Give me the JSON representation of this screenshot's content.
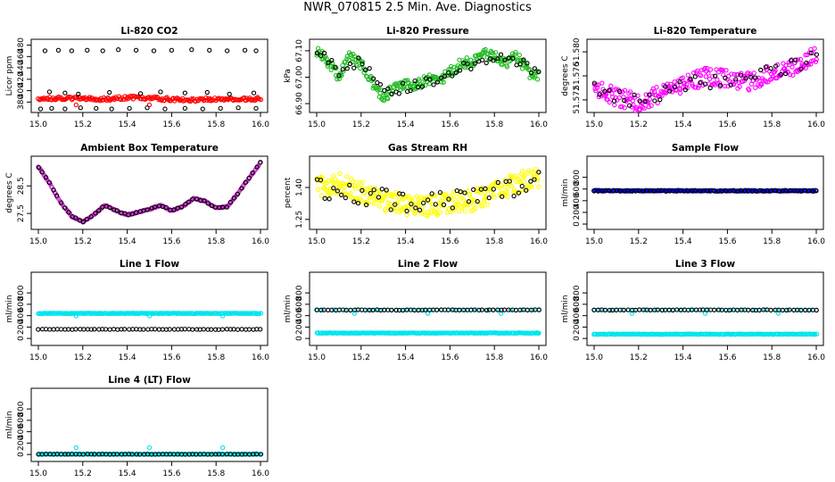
{
  "page": {
    "title": "NWR_070815  2.5 Min. Ave. Diagnostics"
  },
  "colors": {
    "co2": "#ff0000",
    "pressure": "#22bb22",
    "temperature": "#ff00ff",
    "box_temp": "#cc33cc",
    "rh": "#ffff00",
    "sample_flow": "#0000cc",
    "line_flow": "#00e5ee",
    "black": "#000000"
  },
  "chart_data": [
    {
      "type": "scatter",
      "title": "Li-820 CO2",
      "ylabel": "Licor ppm",
      "xlim": [
        15.0,
        16.0
      ],
      "ylim": [
        368,
        484
      ],
      "xticks": [
        "15.0",
        "15.2",
        "15.4",
        "15.6",
        "15.8",
        "16.0"
      ],
      "yticks": [
        {
          "v": 380,
          "label": "380"
        },
        {
          "v": 400,
          "label": "400"
        },
        {
          "v": 420,
          "label": "420"
        },
        {
          "v": 440,
          "label": "440"
        },
        {
          "v": 460,
          "label": "460"
        },
        {
          "v": 480,
          "label": "480"
        }
      ],
      "series": [
        {
          "color": "#ff0000",
          "kind": "band",
          "x": [
            15.0,
            15.1,
            15.2,
            15.3,
            15.4,
            15.5,
            15.6,
            15.7,
            15.8,
            15.9,
            16.0
          ],
          "y": [
            386,
            387,
            386,
            385,
            388,
            387,
            385,
            384,
            385,
            385,
            386
          ],
          "spread": 3,
          "n": 200,
          "markers": "dense"
        },
        {
          "color": "#ff0000",
          "x": [
            15.17,
            15.5
          ],
          "y": [
            375,
            375
          ]
        },
        {
          "color": "#000000",
          "x": [
            15.03,
            15.09,
            15.15,
            15.22,
            15.29,
            15.36,
            15.44,
            15.52,
            15.6,
            15.69,
            15.77,
            15.85,
            15.93,
            15.98
          ],
          "y": [
            470,
            471,
            470,
            471,
            470,
            472,
            471,
            470,
            471,
            472,
            471,
            470,
            471,
            470
          ]
        },
        {
          "color": "#000000",
          "x": [
            15.01,
            15.06,
            15.12,
            15.19,
            15.26,
            15.33,
            15.41,
            15.49,
            15.57,
            15.66,
            15.74,
            15.82,
            15.9,
            15.98
          ],
          "y": [
            368,
            369,
            368,
            370,
            369,
            368,
            369,
            370,
            368,
            369,
            368,
            369,
            370,
            369
          ]
        },
        {
          "color": "#000000",
          "x": [
            15.05,
            15.12,
            15.18,
            15.32,
            15.46,
            15.55,
            15.66,
            15.76,
            15.86,
            15.97
          ],
          "y": [
            398,
            396,
            394,
            397,
            395,
            398,
            396,
            397,
            394,
            396
          ]
        }
      ]
    },
    {
      "type": "scatter",
      "title": "Li-820 Pressure",
      "ylabel": "kPa",
      "xlim": [
        15.0,
        16.0
      ],
      "ylim": [
        66.88,
        67.13
      ],
      "xticks": [
        "15.0",
        "15.2",
        "15.4",
        "15.6",
        "15.8",
        "16.0"
      ],
      "yticks": [
        {
          "v": 66.9,
          "label": "66.90"
        },
        {
          "v": 67.0,
          "label": "67.00"
        },
        {
          "v": 67.1,
          "label": "67.10"
        }
      ],
      "series": [
        {
          "color": "#22bb22",
          "kind": "band",
          "x": [
            15.0,
            15.05,
            15.1,
            15.15,
            15.2,
            15.25,
            15.3,
            15.35,
            15.4,
            15.45,
            15.5,
            15.55,
            15.6,
            15.65,
            15.7,
            15.75,
            15.8,
            15.85,
            15.9,
            15.95,
            16.0
          ],
          "y": [
            67.1,
            67.06,
            67.0,
            67.08,
            67.05,
            66.98,
            66.92,
            66.96,
            66.98,
            66.97,
            66.99,
            66.98,
            67.02,
            67.05,
            67.06,
            67.09,
            67.08,
            67.05,
            67.08,
            67.02,
            67.0
          ],
          "spread": 0.02,
          "n": 260
        },
        {
          "color": "#000000",
          "kind": "band",
          "x": [
            15.0,
            15.1,
            15.2,
            15.3,
            15.4,
            15.5,
            15.6,
            15.7,
            15.8,
            15.9,
            16.0
          ],
          "y": [
            67.1,
            67.02,
            67.07,
            66.94,
            66.96,
            66.98,
            67.01,
            67.05,
            67.08,
            67.06,
            67.02
          ],
          "spread": 0.02,
          "n": 60
        }
      ]
    },
    {
      "type": "scatter",
      "title": "Li-820 Temperature",
      "ylabel": "degrees C",
      "xlim": [
        15.0,
        16.0
      ],
      "ylim": [
        51.5705,
        51.5815
      ],
      "xticks": [
        "15.0",
        "15.2",
        "15.4",
        "15.6",
        "15.8",
        "16.0"
      ],
      "yticks": [
        {
          "v": 51.572,
          "label": "51.572"
        },
        {
          "v": 51.576,
          "label": "51.576"
        },
        {
          "v": 51.58,
          "label": "51.580"
        }
      ],
      "series": [
        {
          "color": "#ff00ff",
          "kind": "band",
          "x": [
            15.0,
            15.1,
            15.2,
            15.3,
            15.4,
            15.5,
            15.6,
            15.7,
            15.8,
            15.9,
            16.0
          ],
          "y": [
            51.574,
            51.5725,
            51.5715,
            51.573,
            51.5745,
            51.576,
            51.5755,
            51.575,
            51.5765,
            51.5775,
            51.5795
          ],
          "spread": 0.0015,
          "n": 260
        },
        {
          "color": "#000000",
          "kind": "band",
          "x": [
            15.0,
            15.2,
            15.4,
            15.6,
            15.8,
            16.0
          ],
          "y": [
            51.574,
            51.5715,
            51.5745,
            51.5755,
            51.5765,
            51.579
          ],
          "spread": 0.0012,
          "n": 45
        }
      ]
    },
    {
      "type": "scatter",
      "title": "Ambient Box Temperature",
      "ylabel": "degrees C",
      "xlim": [
        15.0,
        16.0
      ],
      "ylim": [
        27.05,
        29.45
      ],
      "xticks": [
        "15.0",
        "15.2",
        "15.4",
        "15.6",
        "15.8",
        "16.0"
      ],
      "yticks": [
        {
          "v": 27.5,
          "label": "27.5"
        },
        {
          "v": 28.5,
          "label": "28.5"
        }
      ],
      "series": [
        {
          "color": "#cc33cc",
          "kind": "band",
          "x": [
            15.0,
            15.05,
            15.1,
            15.15,
            15.2,
            15.25,
            15.3,
            15.35,
            15.4,
            15.45,
            15.5,
            15.55,
            15.6,
            15.65,
            15.7,
            15.75,
            15.8,
            15.85,
            15.9,
            15.95,
            16.0
          ],
          "y": [
            29.2,
            28.6,
            27.9,
            27.4,
            27.2,
            27.45,
            27.8,
            27.6,
            27.45,
            27.55,
            27.65,
            27.8,
            27.6,
            27.75,
            28.05,
            27.95,
            27.7,
            27.75,
            28.25,
            28.8,
            29.35
          ],
          "spread": 0.02,
          "n": 240
        },
        {
          "color": "#000000",
          "kind": "band",
          "x": [
            15.0,
            15.05,
            15.1,
            15.15,
            15.2,
            15.25,
            15.3,
            15.35,
            15.4,
            15.45,
            15.5,
            15.55,
            15.6,
            15.65,
            15.7,
            15.75,
            15.8,
            15.85,
            15.9,
            15.95,
            16.0
          ],
          "y": [
            29.2,
            28.6,
            27.9,
            27.4,
            27.2,
            27.45,
            27.8,
            27.6,
            27.45,
            27.55,
            27.65,
            27.8,
            27.6,
            27.75,
            28.05,
            27.95,
            27.7,
            27.75,
            28.25,
            28.8,
            29.35
          ],
          "spread": 0.02,
          "n": 60
        }
      ]
    },
    {
      "type": "scatter",
      "title": "Gas Stream RH",
      "ylabel": "percent",
      "xlim": [
        15.0,
        16.0
      ],
      "ylim": [
        1.22,
        1.53
      ],
      "xticks": [
        "15.0",
        "15.2",
        "15.4",
        "15.6",
        "15.8",
        "16.0"
      ],
      "yticks": [
        {
          "v": 1.25,
          "label": "1.25"
        },
        {
          "v": 1.4,
          "label": "1.40"
        }
      ],
      "series": [
        {
          "color": "#ffff00",
          "kind": "band",
          "x": [
            15.0,
            15.1,
            15.2,
            15.3,
            15.4,
            15.5,
            15.6,
            15.7,
            15.8,
            15.9,
            16.0
          ],
          "y": [
            1.4,
            1.42,
            1.38,
            1.34,
            1.32,
            1.31,
            1.33,
            1.34,
            1.38,
            1.42,
            1.45
          ],
          "spread": 0.05,
          "n": 320
        },
        {
          "color": "#000000",
          "kind": "band",
          "x": [
            15.0,
            15.2,
            15.4,
            15.6,
            15.8,
            16.0
          ],
          "y": [
            1.4,
            1.37,
            1.33,
            1.33,
            1.38,
            1.44
          ],
          "spread": 0.05,
          "n": 55
        }
      ]
    },
    {
      "type": "scatter",
      "title": "Sample Flow",
      "ylabel": "ml/min",
      "xlim": [
        15.0,
        16.0
      ],
      "ylim": [
        -30,
        1100
      ],
      "xticks": [
        "15.0",
        "15.2",
        "15.4",
        "15.6",
        "15.8",
        "16.0"
      ],
      "yticks": [
        {
          "v": 0,
          "label": "0"
        },
        {
          "v": 200,
          "label": "200"
        },
        {
          "v": 400,
          "label": "400"
        },
        {
          "v": 600,
          "label": "600"
        },
        {
          "v": 800,
          "label": "800"
        }
      ],
      "series": [
        {
          "color": "#0000cc",
          "kind": "band",
          "x": [
            15.0,
            16.0
          ],
          "y": [
            570,
            570
          ],
          "spread": 8,
          "n": 240
        },
        {
          "color": "#000000",
          "kind": "band",
          "x": [
            15.0,
            16.0
          ],
          "y": [
            568,
            568
          ],
          "spread": 8,
          "n": 60
        }
      ]
    },
    {
      "type": "scatter",
      "title": "Line 1 Flow",
      "ylabel": "ml/min",
      "xlim": [
        15.0,
        16.0
      ],
      "ylim": [
        -60,
        1100
      ],
      "xticks": [
        "15.0",
        "15.2",
        "15.4",
        "15.6",
        "15.8",
        "16.0"
      ],
      "yticks": [
        {
          "v": 0,
          "label": "0"
        },
        {
          "v": 200,
          "label": "200"
        },
        {
          "v": 400,
          "label": "400"
        },
        {
          "v": 600,
          "label": "600"
        },
        {
          "v": 800,
          "label": "800"
        }
      ],
      "series": [
        {
          "color": "#00e5ee",
          "kind": "band",
          "x": [
            15.0,
            16.0
          ],
          "y": [
            440,
            440
          ],
          "spread": 5,
          "n": 240
        },
        {
          "color": "#00e5ee",
          "x": [
            15.17,
            15.5,
            15.83
          ],
          "y": [
            395,
            395,
            395
          ]
        },
        {
          "color": "#000000",
          "kind": "band",
          "x": [
            15.0,
            16.0
          ],
          "y": [
            160,
            160
          ],
          "spread": 4,
          "n": 60
        }
      ]
    },
    {
      "type": "scatter",
      "title": "Line 2 Flow",
      "ylabel": "ml/min",
      "xlim": [
        15.0,
        16.0
      ],
      "ylim": [
        -60,
        1100
      ],
      "xticks": [
        "15.0",
        "15.2",
        "15.4",
        "15.6",
        "15.8",
        "16.0"
      ],
      "yticks": [
        {
          "v": 0,
          "label": "0"
        },
        {
          "v": 200,
          "label": "200"
        },
        {
          "v": 400,
          "label": "400"
        },
        {
          "v": 600,
          "label": "600"
        },
        {
          "v": 800,
          "label": "800"
        }
      ],
      "series": [
        {
          "color": "#00e5ee",
          "kind": "band",
          "x": [
            15.0,
            16.0
          ],
          "y": [
            95,
            95
          ],
          "spread": 5,
          "n": 240
        },
        {
          "color": "#00e5ee",
          "kind": "band",
          "x": [
            15.0,
            16.0
          ],
          "y": [
            500,
            500
          ],
          "spread": 4,
          "n": 40
        },
        {
          "color": "#00e5ee",
          "x": [
            15.17,
            15.5,
            15.83
          ],
          "y": [
            440,
            440,
            440
          ]
        },
        {
          "color": "#000000",
          "kind": "band",
          "x": [
            15.0,
            16.0
          ],
          "y": [
            500,
            500
          ],
          "spread": 4,
          "n": 60
        }
      ]
    },
    {
      "type": "scatter",
      "title": "Line 3 Flow",
      "ylabel": "ml/min",
      "xlim": [
        15.0,
        16.0
      ],
      "ylim": [
        -60,
        1100
      ],
      "xticks": [
        "15.0",
        "15.2",
        "15.4",
        "15.6",
        "15.8",
        "16.0"
      ],
      "yticks": [
        {
          "v": 0,
          "label": "0"
        },
        {
          "v": 200,
          "label": "200"
        },
        {
          "v": 400,
          "label": "400"
        },
        {
          "v": 600,
          "label": "600"
        },
        {
          "v": 800,
          "label": "800"
        }
      ],
      "series": [
        {
          "color": "#00e5ee",
          "kind": "band",
          "x": [
            15.0,
            16.0
          ],
          "y": [
            75,
            75
          ],
          "spread": 5,
          "n": 240
        },
        {
          "color": "#00e5ee",
          "kind": "band",
          "x": [
            15.0,
            16.0
          ],
          "y": [
            500,
            500
          ],
          "spread": 4,
          "n": 40
        },
        {
          "color": "#00e5ee",
          "x": [
            15.17,
            15.5,
            15.83
          ],
          "y": [
            440,
            440,
            440
          ]
        },
        {
          "color": "#000000",
          "kind": "band",
          "x": [
            15.0,
            16.0
          ],
          "y": [
            500,
            500
          ],
          "spread": 4,
          "n": 60
        }
      ]
    },
    {
      "type": "scatter",
      "title": "Line 4 (LT) Flow",
      "ylabel": "ml/min",
      "xlim": [
        15.0,
        16.0
      ],
      "ylim": [
        -60,
        1100
      ],
      "xticks": [
        "15.0",
        "15.2",
        "15.4",
        "15.6",
        "15.8",
        "16.0"
      ],
      "yticks": [
        {
          "v": 0,
          "label": "0"
        },
        {
          "v": 200,
          "label": "200"
        },
        {
          "v": 400,
          "label": "400"
        },
        {
          "v": 600,
          "label": "600"
        },
        {
          "v": 800,
          "label": "800"
        }
      ],
      "series": [
        {
          "color": "#00e5ee",
          "kind": "band",
          "x": [
            15.0,
            16.0
          ],
          "y": [
            5,
            5
          ],
          "spread": 3,
          "n": 240
        },
        {
          "color": "#00e5ee",
          "x": [
            15.17,
            15.5,
            15.83
          ],
          "y": [
            120,
            120,
            120
          ]
        },
        {
          "color": "#000000",
          "kind": "band",
          "x": [
            15.0,
            16.0
          ],
          "y": [
            5,
            5
          ],
          "spread": 3,
          "n": 60
        }
      ]
    }
  ]
}
